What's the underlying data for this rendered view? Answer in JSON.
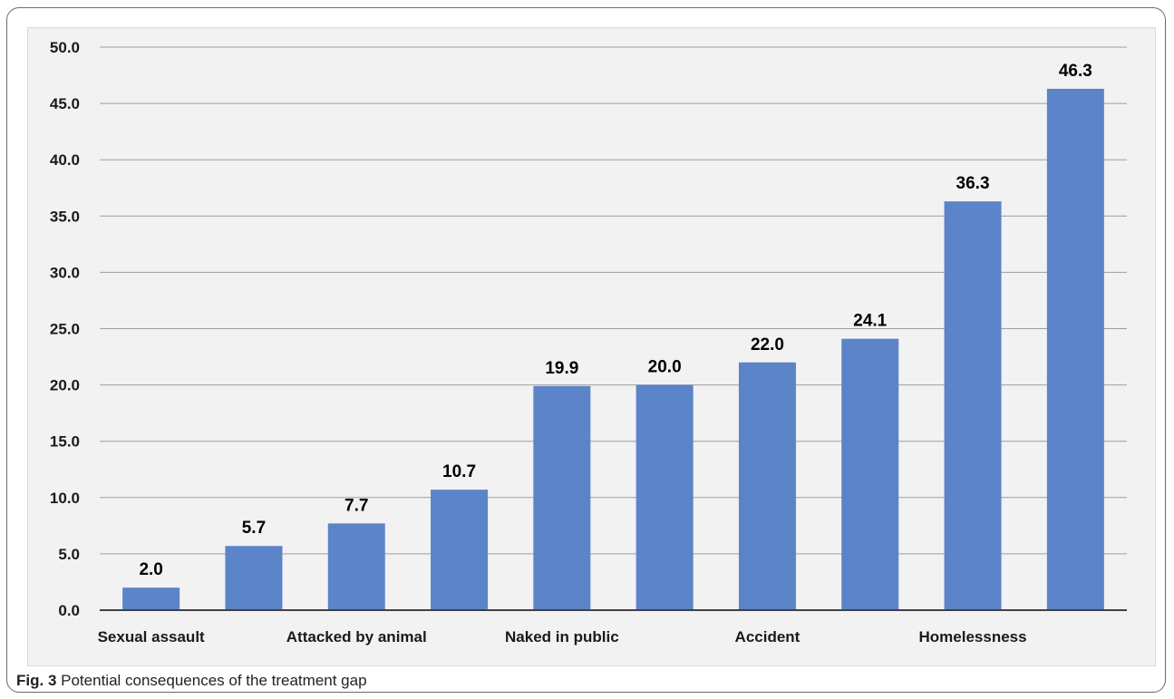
{
  "figure": {
    "caption_label": "Fig. 3",
    "caption_text": "Potential consequences of the treatment gap"
  },
  "colors": {
    "bar": "#5b84c9",
    "grid": "#9e9e9e",
    "axis": "#404040",
    "plot_background": "#f2f2f2"
  },
  "chart_data": {
    "type": "bar",
    "title": "",
    "xlabel": "",
    "ylabel": "",
    "ylim": [
      0,
      50
    ],
    "yticks": [
      "0.0",
      "5.0",
      "10.0",
      "15.0",
      "20.0",
      "25.0",
      "30.0",
      "35.0",
      "40.0",
      "45.0",
      "50.0"
    ],
    "grid": true,
    "legend": "none",
    "categories": [
      "Sexual assault",
      "",
      "Attacked by animal",
      "",
      "Naked in public",
      "",
      "Accident",
      "",
      "Homelessness",
      ""
    ],
    "values": [
      2.0,
      5.7,
      7.7,
      10.7,
      19.9,
      20.0,
      22.0,
      24.1,
      36.3,
      46.3
    ],
    "data_labels": [
      "2.0",
      "5.7",
      "7.7",
      "10.7",
      "19.9",
      "20.0",
      "22.0",
      "24.1",
      "36.3",
      "46.3"
    ]
  }
}
